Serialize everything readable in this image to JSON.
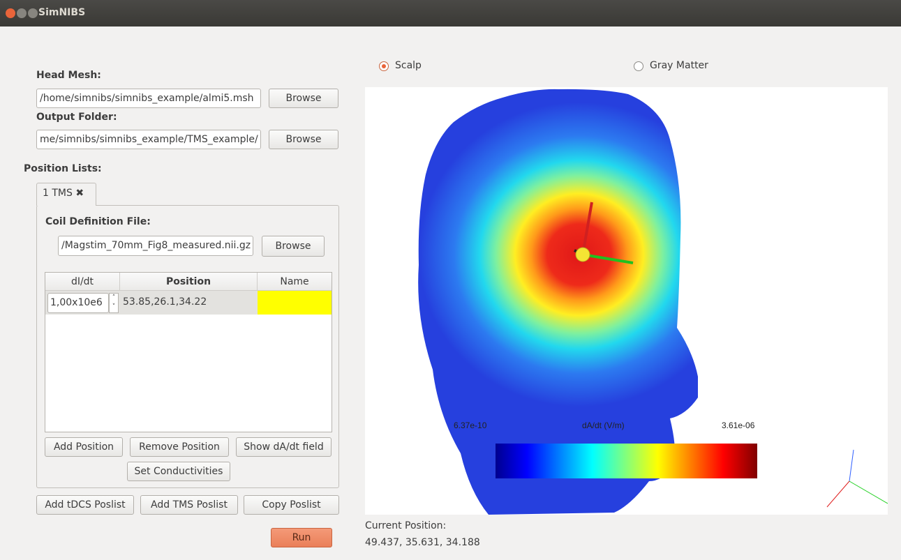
{
  "window": {
    "title": "SimNIBS"
  },
  "head_mesh": {
    "label": "Head Mesh:",
    "path": "/home/simnibs/simnibs_example/almi5.msh",
    "button": "Browse"
  },
  "output_folder": {
    "label": "Output Folder:",
    "path": "me/simnibs/simnibs_example/TMS_example/",
    "button": "Browse"
  },
  "position_lists": {
    "label": "Position Lists:",
    "tab": "1 TMS"
  },
  "coil": {
    "label": "Coil Definition File:",
    "path": "/Magstim_70mm_Fig8_measured.nii.gz",
    "button": "Browse"
  },
  "table": {
    "headers": [
      "dI/dt",
      "Position",
      "Name"
    ],
    "rows": [
      [
        "1,00x10e6",
        "53.85,26.1,34.22"
      ]
    ]
  },
  "buttons": {
    "add_position": "Add Position",
    "remove_position": "Remove Position",
    "show_field": "Show dA/dt field",
    "set_conductivities": "Set Conductivities",
    "add_tdcs": "Add tDCS Poslist",
    "add_tms": "Add TMS Poslist",
    "copy": "Copy Poslist",
    "run": "Run"
  },
  "view": {
    "options": [
      "Scalp",
      "Gray Matter"
    ],
    "colorbar": {
      "min": "6.37e-10",
      "title": "dA/dt (V/m)",
      "max": "3.61e-06"
    }
  },
  "current_position": {
    "label": "Current Position:",
    "value": "49.437, 35.631, 34.188"
  }
}
